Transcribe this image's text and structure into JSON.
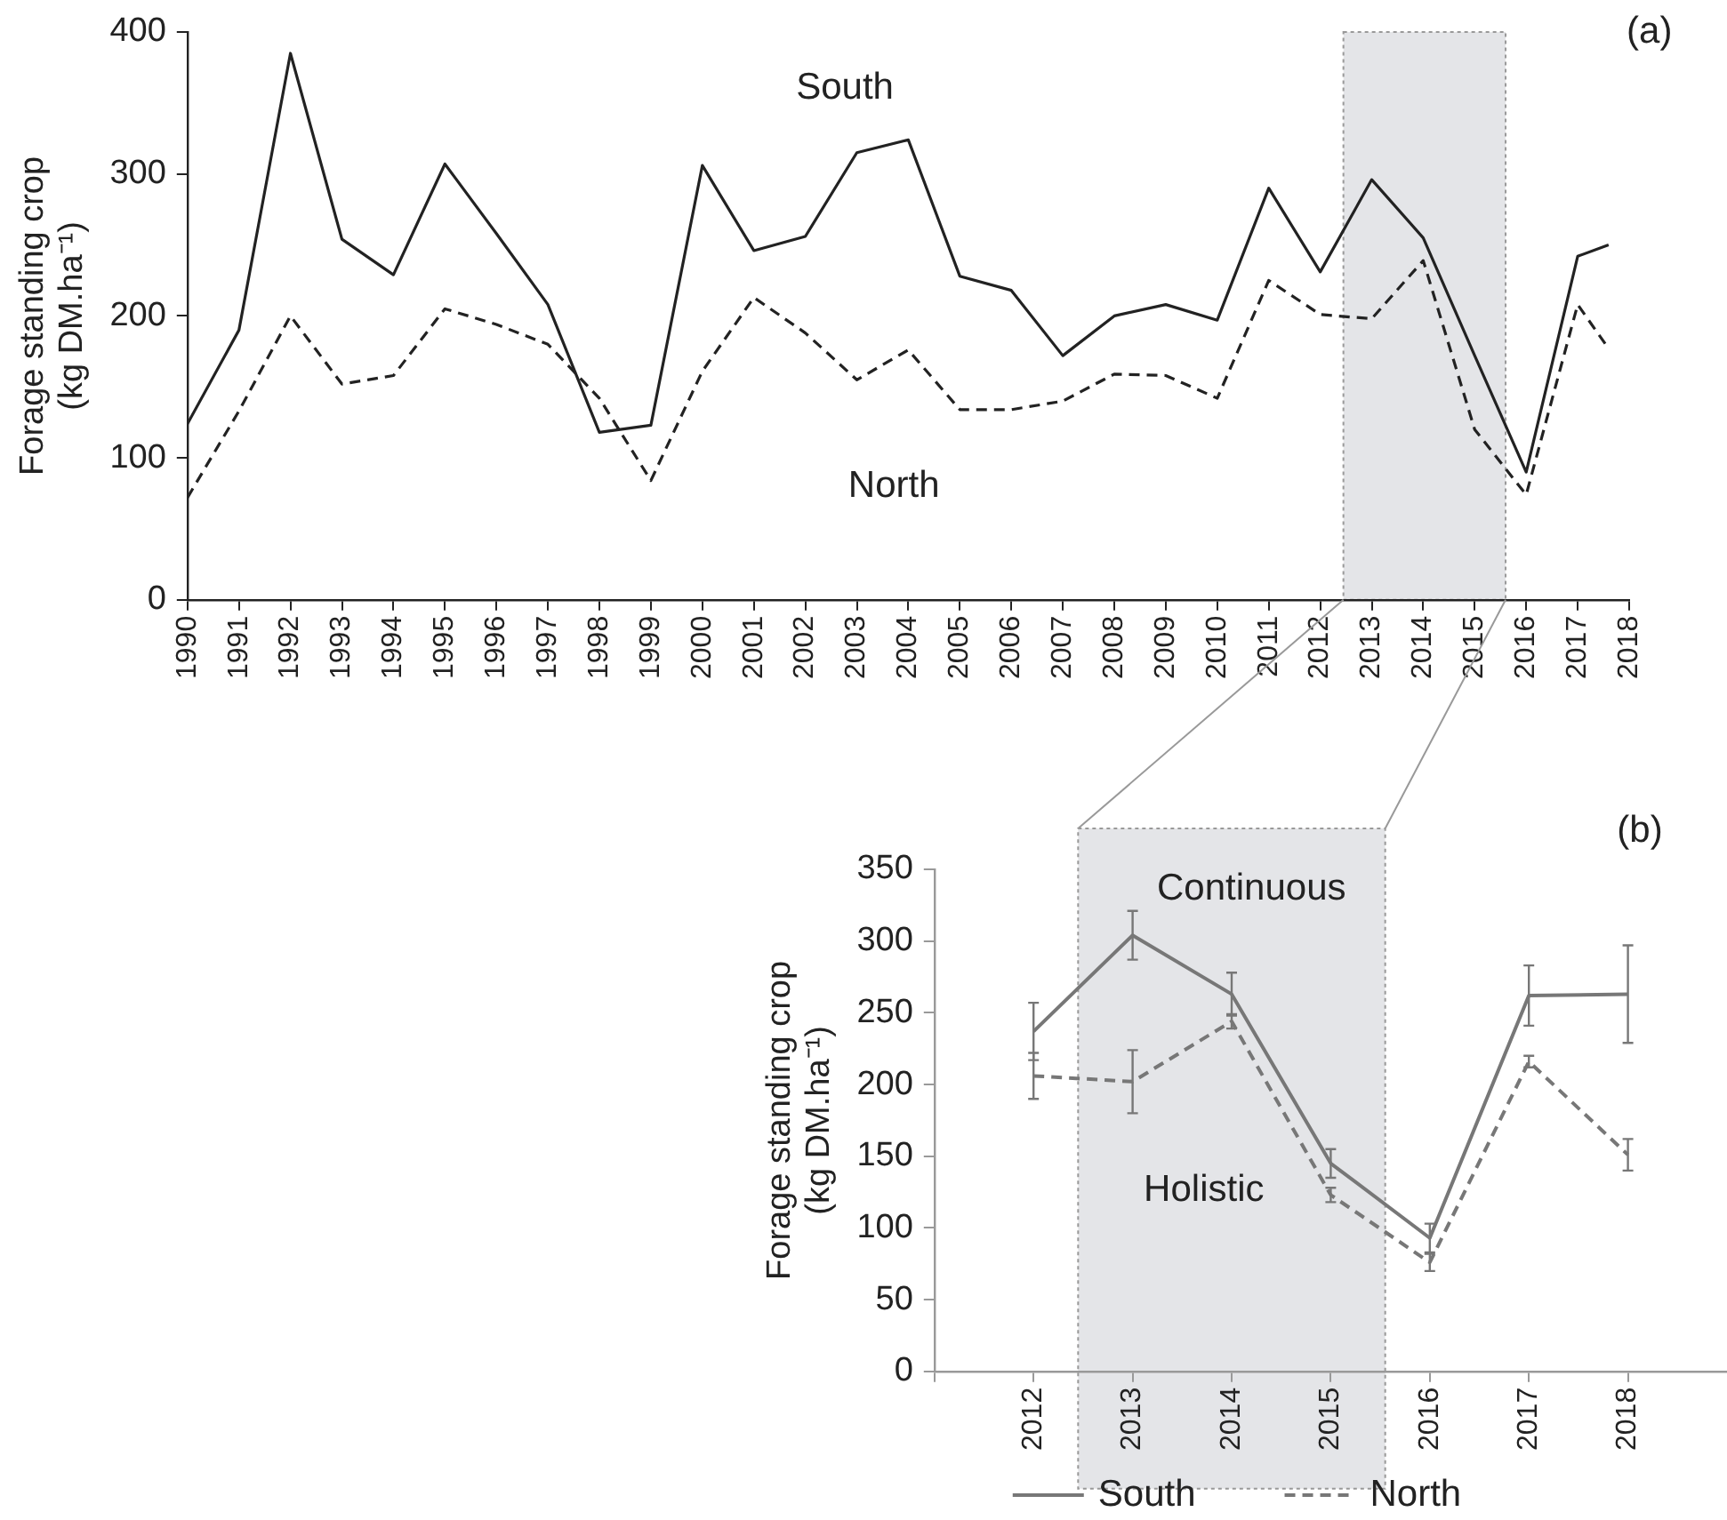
{
  "chart_data": [
    {
      "type": "line",
      "ylabel": "Forage standing crop (kg DM.ha⁻¹)",
      "annotations": [
        "(a)"
      ],
      "x": [
        1990,
        1991,
        1992,
        1993,
        1994,
        1995,
        1996,
        1997,
        1998,
        1999,
        2000,
        2001,
        2002,
        2003,
        2004,
        2005,
        2006,
        2007,
        2008,
        2009,
        2010,
        2011,
        2012,
        2013,
        2014,
        2015,
        2016,
        2017,
        2017.6
      ],
      "series": [
        {
          "name": "South",
          "color": "#222222",
          "line_style": "solid",
          "values": [
            124,
            190,
            385,
            254,
            229,
            307,
            258,
            208,
            118,
            123,
            306,
            246,
            256,
            315,
            324,
            228,
            218,
            172,
            200,
            208,
            197,
            290,
            231,
            296,
            255,
            172,
            90,
            242,
            250
          ]
        },
        {
          "name": "North",
          "color": "#222222",
          "line_style": "dashed",
          "values": [
            72,
            133,
            200,
            152,
            158,
            205,
            194,
            180,
            142,
            84,
            161,
            213,
            188,
            155,
            176,
            134,
            134,
            140,
            159,
            158,
            142,
            225,
            201,
            198,
            239,
            120,
            74,
            208,
            177
          ]
        }
      ],
      "xlim": [
        1990,
        2018
      ],
      "xticks": [
        1990,
        1991,
        1992,
        1993,
        1994,
        1995,
        1996,
        1997,
        1998,
        1999,
        2000,
        2001,
        2002,
        2003,
        2004,
        2005,
        2006,
        2007,
        2008,
        2009,
        2010,
        2011,
        2012,
        2013,
        2014,
        2015,
        2016,
        2017,
        2018
      ],
      "ylim": [
        0,
        400
      ],
      "yticks": [
        0,
        100,
        200,
        300,
        400
      ],
      "bands": [
        {
          "axis": "x",
          "from": 2012.45,
          "to": 2015.6,
          "color": "#e4e5e8"
        }
      ]
    },
    {
      "type": "line",
      "ylabel": "Forage standing crop (kg DM.ha⁻¹)",
      "annotations": [
        "Continuous",
        "Holistic",
        "(b)"
      ],
      "x": [
        2012,
        2013,
        2014,
        2015,
        2016,
        2017,
        2018
      ],
      "series": [
        {
          "name": "South",
          "color": "#777777",
          "line_style": "solid",
          "values": [
            237,
            304,
            263,
            145,
            93,
            262,
            263
          ],
          "errors": [
            20,
            17,
            15,
            10,
            10,
            21,
            34
          ]
        },
        {
          "name": "North",
          "color": "#777777",
          "line_style": "dashed",
          "values": [
            206,
            202,
            244,
            123,
            76,
            216,
            151
          ],
          "errors": [
            16,
            22,
            5,
            5,
            6,
            4,
            11
          ]
        }
      ],
      "xlim": [
        2011,
        2019
      ],
      "xticks": [
        {
          "value": 2011,
          "label": null
        },
        2012,
        2013,
        2014,
        2015,
        2016,
        2017,
        2018
      ],
      "ylim": [
        0,
        350
      ],
      "yticks": [
        0,
        50,
        100,
        150,
        200,
        250,
        300,
        350
      ],
      "legend": "bottom",
      "bands": [
        {
          "axis": "x",
          "from": 2012.45,
          "to": 2015.55,
          "color": "#e4e5e8"
        }
      ]
    }
  ]
}
